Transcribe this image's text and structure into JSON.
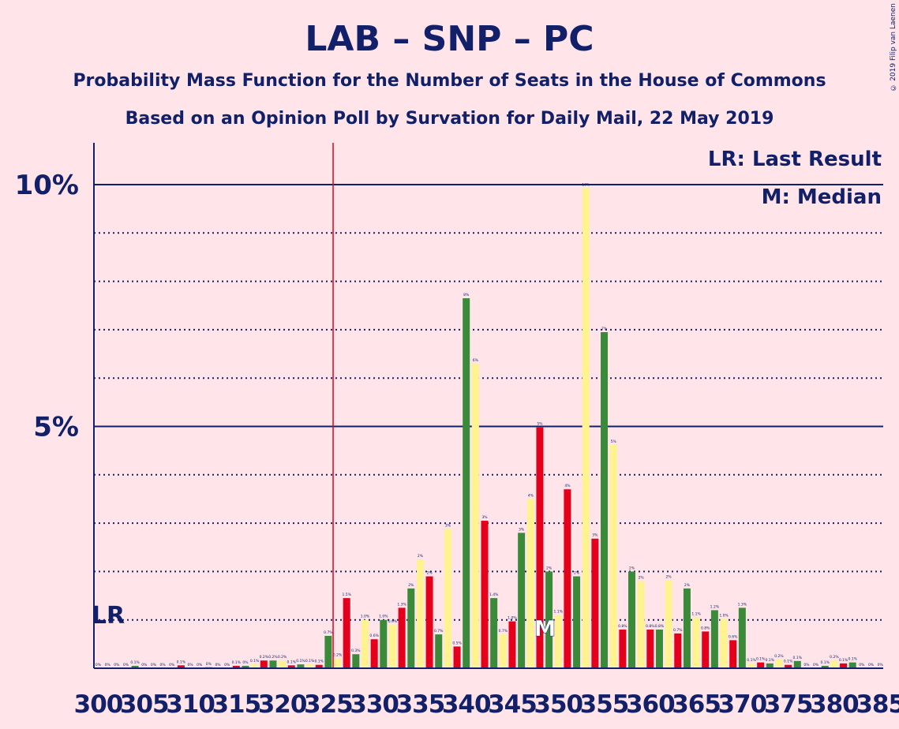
{
  "header": {
    "title": "LAB – SNP – PC",
    "subtitle": "Probability Mass Function for the Number of Seats in the House of Commons",
    "subtitle2": "Based on an Opinion Poll by Survation for Daily Mail, 22 May 2019",
    "copyright": "© 2019 Filip van Laenen"
  },
  "legend": {
    "lr": "LR: Last Result",
    "median": "M: Median"
  },
  "markers": {
    "lr_label": "LR",
    "median_label": "M"
  },
  "colors": {
    "background": "#ffe5e9",
    "text": "#12206a",
    "red": "#e4001b",
    "green": "#3a8a3a",
    "yellow": "#fff38f",
    "lr_line": "#e4001b"
  },
  "chart_data": {
    "type": "bar",
    "ylabel": "",
    "xlabel": "",
    "ylim": [
      0,
      10.8
    ],
    "y_ticks": [
      "5%",
      "10%"
    ],
    "x_tick_labels": [
      "300",
      "305",
      "310",
      "315",
      "320",
      "325",
      "330",
      "335",
      "340",
      "345",
      "350",
      "355",
      "360",
      "365",
      "370",
      "375",
      "380",
      "385"
    ],
    "last_result_seat": 326,
    "median_seat": 349,
    "bar_color_cycle": [
      "red",
      "green",
      "yellow"
    ],
    "x": [
      300,
      301,
      302,
      303,
      304,
      305,
      306,
      307,
      308,
      309,
      310,
      311,
      312,
      313,
      314,
      315,
      316,
      317,
      318,
      319,
      320,
      321,
      322,
      323,
      324,
      325,
      326,
      327,
      328,
      329,
      330,
      331,
      332,
      333,
      334,
      335,
      336,
      337,
      338,
      339,
      340,
      341,
      342,
      343,
      344,
      345,
      346,
      347,
      348,
      349,
      350,
      351,
      352,
      353,
      354,
      355,
      356,
      357,
      358,
      359,
      360,
      361,
      362,
      363,
      364,
      365,
      366,
      367,
      368,
      369,
      370,
      371,
      372,
      373,
      374,
      375,
      376,
      377,
      378,
      379,
      380,
      381,
      382,
      383,
      384,
      385
    ],
    "values": [
      0,
      0,
      0,
      0,
      0.05,
      0,
      0,
      0,
      0,
      0.06,
      0,
      0,
      0.02,
      0,
      0,
      0.05,
      0.05,
      0.08,
      0.16,
      0.16,
      0.16,
      0.06,
      0.08,
      0.08,
      0.07,
      0.67,
      0.2,
      1.45,
      0.29,
      1.0,
      0.6,
      1.0,
      0.9,
      1.25,
      1.65,
      2.25,
      1.9,
      0.7,
      2.88,
      0.45,
      7.65,
      6.3,
      3.05,
      1.45,
      0.7,
      0.97,
      2.8,
      3.5,
      4.98,
      2.0,
      1.1,
      3.7,
      1.9,
      9.93,
      2.68,
      6.95,
      4.62,
      0.8,
      2.0,
      1.8,
      0.8,
      0.8,
      1.82,
      0.72,
      1.65,
      1.05,
      0.76,
      1.2,
      1.02,
      0.58,
      1.25,
      0.1,
      0.12,
      0.1,
      0.18,
      0.07,
      0.15,
      0,
      0,
      0.05,
      0.16,
      0.1,
      0.12,
      0,
      0,
      0
    ],
    "data_labels": [
      "0%",
      "0%",
      "0%",
      "0%",
      "0.1%",
      "0%",
      "0%",
      "0%",
      "0%",
      "0.1%",
      "0%",
      "0%",
      "0%",
      "0%",
      "0%",
      "0.1%",
      "0%",
      "0.1%",
      "0.2%",
      "0.2%",
      "0.2%",
      "0.1%",
      "0.1%",
      "0.1%",
      "0.1%",
      "0.7%",
      "0.2%",
      "1.5%",
      "0.3%",
      "1.0%",
      "0.6%",
      "1.0%",
      "0.9%",
      "1.3%",
      "2%",
      "2%",
      "2%",
      "0.7%",
      "3%",
      "0.5%",
      "8%",
      "6%",
      "3%",
      "1.4%",
      "0.7%",
      "1.0%",
      "3%",
      "4%",
      "5%",
      "2%",
      "1.1%",
      "4%",
      "2%",
      "10%",
      "3%",
      "7%",
      "5%",
      "0.8%",
      "2%",
      "2%",
      "0.8%",
      "0.8%",
      "2%",
      "0.7%",
      "2%",
      "1.1%",
      "0.8%",
      "1.2%",
      "1.0%",
      "0.6%",
      "1.3%",
      "0.1%",
      "0.1%",
      "0.1%",
      "0.2%",
      "0.1%",
      "0.1%",
      "0%",
      "0%",
      "0.1%",
      "0.2%",
      "0.1%",
      "0.1%",
      "0%",
      "0%",
      "0%"
    ]
  }
}
